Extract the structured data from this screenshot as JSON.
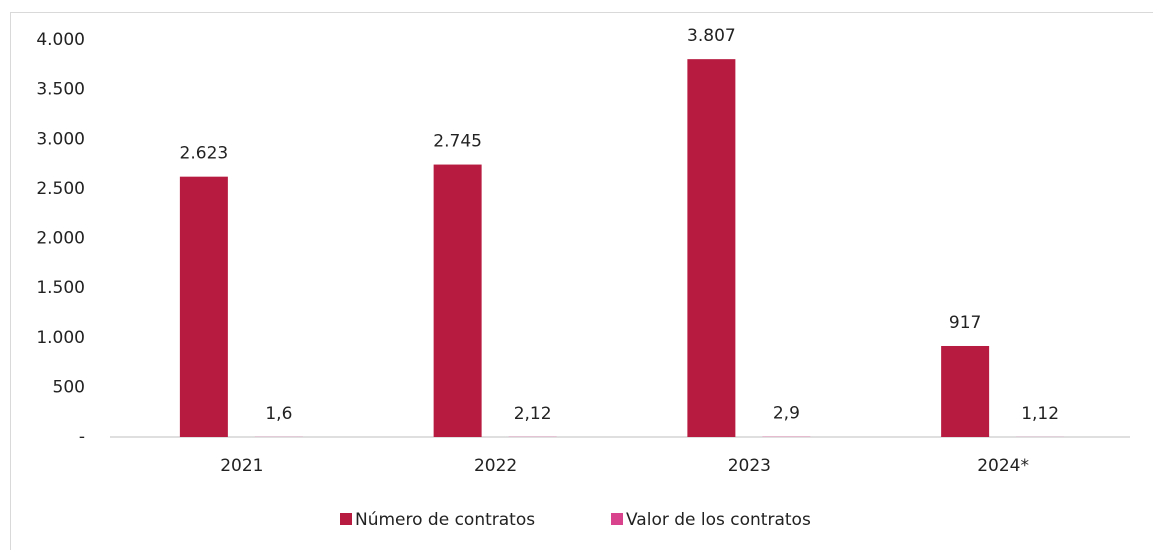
{
  "chart_data": {
    "type": "bar",
    "categories": [
      "2021",
      "2022",
      "2023",
      "2024*"
    ],
    "series": [
      {
        "name": "Número de contratos",
        "color": "#b71c40",
        "values": [
          2623,
          2745,
          3807,
          917
        ],
        "value_labels": [
          "2.623",
          "2.745",
          "3.807",
          "917"
        ]
      },
      {
        "name": "Valor de los contratos",
        "color": "#d9428c",
        "values": [
          1.6,
          2.12,
          2.9,
          1.12
        ],
        "value_labels": [
          "1,6",
          "2,12",
          "2,9",
          "1,12"
        ]
      }
    ],
    "ylim": [
      0,
      4000
    ],
    "yticks": [
      {
        "value": 0,
        "label": "-"
      },
      500,
      {
        "value": 1000,
        "label": "1.000"
      },
      {
        "value": 1500,
        "label": "1.500"
      },
      {
        "value": 2000,
        "label": "2.000"
      },
      {
        "value": 2500,
        "label": "2.500"
      },
      {
        "value": 3000,
        "label": "3.000"
      },
      {
        "value": 3500,
        "label": "3.500"
      },
      {
        "value": 4000,
        "label": "4.000"
      }
    ],
    "grid": false,
    "legend": "bottom"
  }
}
